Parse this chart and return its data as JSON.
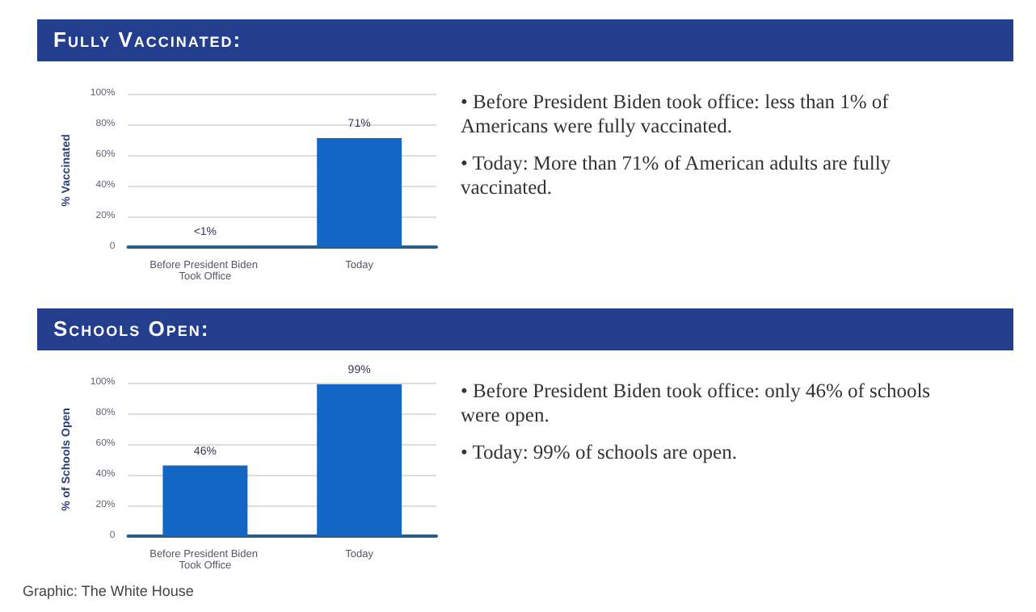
{
  "chart_data": [
    {
      "type": "bar",
      "title": "Fully Vaccinated:",
      "ylabel": "% Vaccinated",
      "categories": [
        "Before President Biden Took Office",
        "Today"
      ],
      "values": [
        0.5,
        71
      ],
      "value_labels": [
        "<1%",
        "71%"
      ],
      "color": "#1466c4",
      "ylim": [
        0,
        100
      ],
      "yticks": [
        0,
        {
          "value": 20,
          "label": "20%"
        },
        {
          "value": 40,
          "label": "40%"
        },
        {
          "value": 60,
          "label": "60%"
        },
        {
          "value": 80,
          "label": "80%"
        },
        {
          "value": 100,
          "label": "100%"
        }
      ],
      "grid": "y",
      "annotations": [
        "• Before President Biden took office: less than 1% of Americans were fully vaccinated.",
        "• Today: More than 71% of American adults are fully vaccinated."
      ]
    },
    {
      "type": "bar",
      "title": "Schools Open:",
      "ylabel": "% of Schools Open",
      "categories": [
        "Before President Biden Took Office",
        "Today"
      ],
      "values": [
        46,
        99
      ],
      "value_labels": [
        "46%",
        "99%"
      ],
      "color": "#1466c4",
      "ylim": [
        0,
        100
      ],
      "yticks": [
        0,
        {
          "value": 20,
          "label": "20%"
        },
        {
          "value": 40,
          "label": "40%"
        },
        {
          "value": 60,
          "label": "60%"
        },
        {
          "value": 80,
          "label": "80%"
        },
        {
          "value": 100,
          "label": "100%"
        }
      ],
      "grid": "y",
      "annotations": [
        "• Before President Biden took office: only 46% of schools were open.",
        "• Today: 99% of schools are open.",
        "Graphic: The White House"
      ]
    }
  ]
}
